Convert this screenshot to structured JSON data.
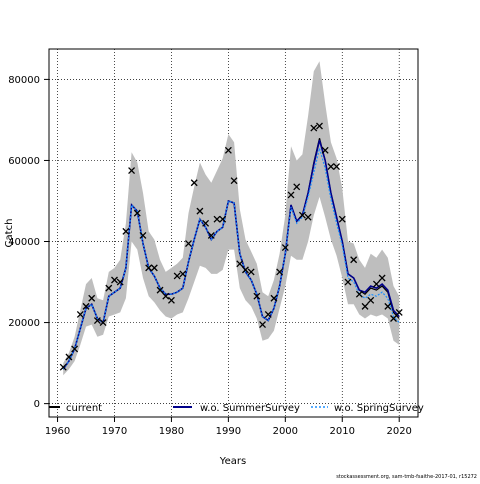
{
  "chart_data": {
    "type": "line",
    "xlabel": "Years",
    "ylabel": "Catch",
    "xlim": [
      1958.5,
      2023.3
    ],
    "ylim": [
      -3300,
      87500
    ],
    "x_ticks": [
      1960,
      1970,
      1980,
      1990,
      2000,
      2010,
      2020
    ],
    "y_ticks": [
      0,
      20000,
      40000,
      60000,
      80000
    ],
    "x_tick_labels": [
      "1960",
      "1970",
      "1980",
      "1990",
      "2000",
      "2010",
      "2020"
    ],
    "y_tick_labels": [
      "0",
      "20000",
      "40000",
      "60000",
      "80000"
    ],
    "grid": true,
    "legend_position": "bottom",
    "footer": "stockassessment.org, sam-tmb-fsaithe-2017-01, r15272",
    "colors": {
      "band": "#bebebe",
      "current": "#000000",
      "summer": "#00008b",
      "spring": "#1e90ff",
      "observed": "#000000"
    },
    "years": [
      1960,
      1961,
      1962,
      1963,
      1964,
      1965,
      1966,
      1967,
      1968,
      1969,
      1970,
      1971,
      1972,
      1973,
      1974,
      1975,
      1976,
      1977,
      1978,
      1979,
      1980,
      1981,
      1982,
      1983,
      1984,
      1985,
      1986,
      1987,
      1988,
      1989,
      1990,
      1991,
      1992,
      1993,
      1994,
      1995,
      1996,
      1997,
      1998,
      1999,
      2000,
      2001,
      2002,
      2003,
      2004,
      2005,
      2006,
      2007,
      2008,
      2009,
      2010,
      2011,
      2012,
      2013,
      2014,
      2015,
      2016,
      2017,
      2018,
      2019,
      2020
    ],
    "observed": [
      null,
      9000,
      11500,
      13500,
      22000,
      24000,
      26000,
      20500,
      20000,
      28500,
      30500,
      30000,
      42500,
      57500,
      47000,
      41500,
      33500,
      33500,
      28000,
      26500,
      25500,
      31500,
      32000,
      39500,
      54500,
      47500,
      44500,
      41500,
      45500,
      45500,
      62500,
      55000,
      34500,
      33000,
      32500,
      26500,
      19500,
      22000,
      26000,
      32500,
      38500,
      51500,
      53500,
      46500,
      46000,
      68000,
      68500,
      62500,
      58500,
      58500,
      45500,
      30000,
      35500,
      27000,
      24000,
      25500,
      29500,
      31000,
      24000,
      21000,
      22500
    ],
    "series": [
      {
        "name": "current",
        "values": [
          null,
          8500,
          10500,
          13500,
          18500,
          23500,
          24500,
          21000,
          20000,
          26500,
          27500,
          28500,
          33500,
          49000,
          47500,
          39500,
          33500,
          31500,
          28500,
          27000,
          27000,
          27500,
          28500,
          35000,
          40500,
          45500,
          43500,
          40500,
          42500,
          43500,
          50000,
          49500,
          37000,
          32500,
          30500,
          27000,
          21500,
          20500,
          23500,
          29000,
          37000,
          49000,
          45000,
          46500,
          52000,
          59500,
          65500,
          60000,
          52000,
          46000,
          40000,
          32000,
          31000,
          28000,
          27000,
          28500,
          28000,
          29000,
          27500,
          22500,
          21000
        ]
      },
      {
        "name": "w.o. SummerSurvey",
        "values": [
          null,
          8500,
          10500,
          13500,
          18500,
          23500,
          24500,
          21000,
          20000,
          26500,
          27500,
          28500,
          33500,
          49000,
          47500,
          39500,
          33500,
          31500,
          28500,
          27000,
          27000,
          27500,
          28500,
          35000,
          40500,
          45500,
          43500,
          40500,
          42500,
          43500,
          50000,
          49500,
          37000,
          32500,
          30500,
          27000,
          21500,
          20500,
          23500,
          29000,
          37000,
          49000,
          45000,
          46500,
          52000,
          59000,
          65000,
          60000,
          52000,
          46000,
          40000,
          32000,
          31000,
          28000,
          27500,
          29000,
          28500,
          29500,
          28000,
          23000,
          21500
        ]
      },
      {
        "name": "w.o. SpringSurvey",
        "values": [
          null,
          8500,
          10500,
          13500,
          18500,
          23500,
          24500,
          21000,
          20000,
          26500,
          27500,
          28500,
          33500,
          49000,
          47500,
          39500,
          33500,
          31500,
          28500,
          27000,
          27000,
          27500,
          28500,
          35000,
          40500,
          45500,
          43500,
          40500,
          42500,
          43500,
          50000,
          49500,
          37000,
          32500,
          30500,
          27000,
          21500,
          20500,
          23500,
          29000,
          37000,
          48500,
          44500,
          46000,
          51000,
          57000,
          63000,
          58000,
          50500,
          44500,
          39000,
          31000,
          30000,
          27000,
          26000,
          27000,
          26500,
          27500,
          26000,
          21500,
          20000
        ]
      }
    ],
    "band_upper": [
      null,
      10000,
      12500,
      16500,
      23000,
      29500,
      31000,
      26000,
      25500,
      32500,
      33500,
      35500,
      44500,
      62000,
      59500,
      52000,
      42500,
      40500,
      35500,
      32500,
      33500,
      34500,
      36000,
      47000,
      53500,
      59500,
      56500,
      54500,
      57500,
      60500,
      66500,
      64500,
      48000,
      40500,
      37500,
      34500,
      27500,
      26500,
      30500,
      37000,
      46500,
      63500,
      60000,
      61500,
      71000,
      82000,
      84500,
      74000,
      64500,
      60500,
      53000,
      40000,
      39500,
      35500,
      33500,
      37000,
      36000,
      38000,
      36000,
      29000,
      26500
    ],
    "band_lower": [
      null,
      7000,
      8500,
      10500,
      14500,
      19000,
      19500,
      16500,
      17000,
      21500,
      22000,
      22500,
      26000,
      40000,
      38000,
      31000,
      26500,
      25000,
      23000,
      21500,
      21000,
      22000,
      22500,
      26000,
      30000,
      34000,
      33500,
      32000,
      32000,
      33000,
      38000,
      38000,
      28500,
      25500,
      24000,
      21000,
      15500,
      16000,
      18000,
      23500,
      29000,
      36500,
      35500,
      35500,
      40000,
      46500,
      51000,
      46000,
      40500,
      36500,
      31000,
      24500,
      24500,
      22000,
      21000,
      22000,
      21500,
      22000,
      21000,
      15500,
      14500
    ]
  }
}
